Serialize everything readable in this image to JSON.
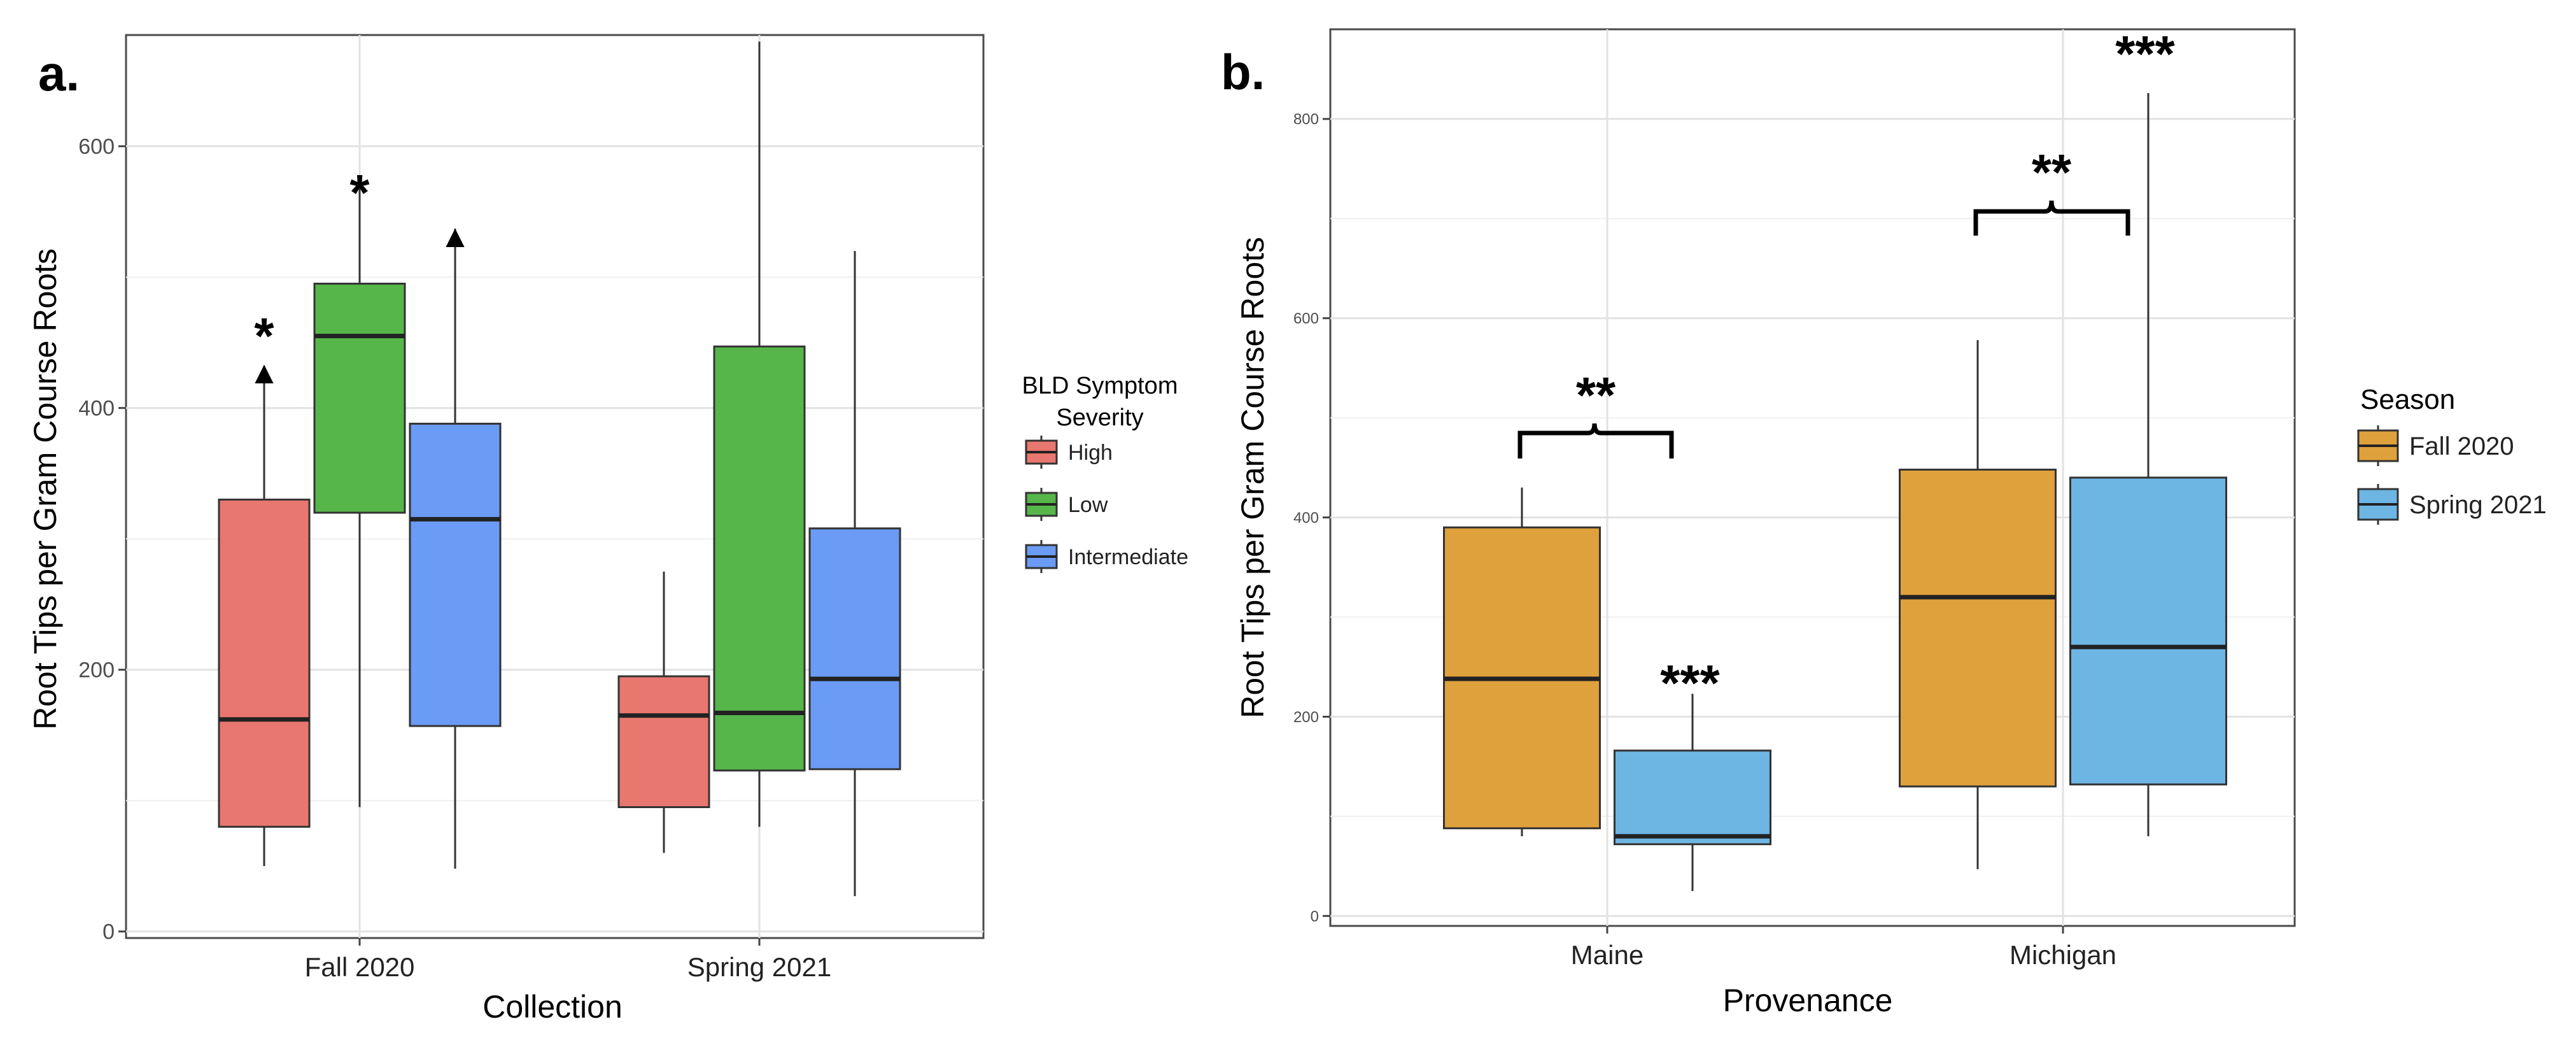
{
  "chart_data": [
    {
      "type": "boxplot",
      "panel_label": "a.",
      "title": "",
      "xlabel": "Collection",
      "ylabel": "Root Tips per Gram Course Roots",
      "categories": [
        "Fall 2020",
        "Spring 2021"
      ],
      "ylim": [
        -5,
        685
      ],
      "yticks": [
        0,
        200,
        400,
        600
      ],
      "grid": true,
      "legend": {
        "title_line1": "BLD Symptom",
        "title_line2": "Severity",
        "placement": "right",
        "entries": [
          "High",
          "Low",
          "Intermediate"
        ]
      },
      "series": [
        {
          "name": "High",
          "color": "#E8776F",
          "boxes": [
            {
              "category": "Fall 2020",
              "min": 50,
              "q1": 80,
              "median": 162,
              "q3": 330,
              "max": 432
            },
            {
              "category": "Spring 2021",
              "min": 60,
              "q1": 95,
              "median": 165,
              "q3": 195,
              "max": 275
            }
          ]
        },
        {
          "name": "Low",
          "color": "#56B64A",
          "boxes": [
            {
              "category": "Fall 2020",
              "min": 95,
              "q1": 320,
              "median": 455,
              "q3": 495,
              "max": 578
            },
            {
              "category": "Spring 2021",
              "min": 80,
              "q1": 123,
              "median": 167,
              "q3": 447,
              "max": 680
            }
          ]
        },
        {
          "name": "Intermediate",
          "color": "#6A9BF5",
          "boxes": [
            {
              "category": "Fall 2020",
              "min": 48,
              "q1": 157,
              "median": 315,
              "q3": 388,
              "max": 537
            },
            {
              "category": "Spring 2021",
              "min": 27,
              "q1": 124,
              "median": 193,
              "q3": 308,
              "max": 520
            }
          ]
        }
      ],
      "annotations": [
        {
          "category": "Fall 2020",
          "series": "High",
          "text": "*"
        },
        {
          "category": "Fall 2020",
          "series": "High",
          "text": "▲"
        },
        {
          "category": "Fall 2020",
          "series": "Low",
          "text": "*"
        },
        {
          "category": "Fall 2020",
          "series": "Intermediate",
          "text": "▲"
        }
      ]
    },
    {
      "type": "boxplot",
      "panel_label": "b.",
      "title": "",
      "xlabel": "Provenance",
      "ylabel": "Root Tips per Gram Course Roots",
      "categories": [
        "Maine",
        "Michigan"
      ],
      "ylim": [
        -10,
        890
      ],
      "yticks": [
        0,
        200,
        400,
        600,
        800
      ],
      "grid": true,
      "legend": {
        "title_line1": "Season",
        "placement": "right",
        "entries": [
          "Fall 2020",
          "Spring 2021"
        ]
      },
      "series": [
        {
          "name": "Fall 2020",
          "color": "#DFA13B",
          "boxes": [
            {
              "category": "Maine",
              "min": 80,
              "q1": 88,
              "median": 238,
              "q3": 390,
              "max": 430
            },
            {
              "category": "Michigan",
              "min": 47,
              "q1": 130,
              "median": 320,
              "q3": 448,
              "max": 578
            }
          ]
        },
        {
          "name": "Spring 2021",
          "color": "#6DB5E3",
          "boxes": [
            {
              "category": "Maine",
              "min": 25,
              "q1": 72,
              "median": 80,
              "q3": 166,
              "max": 223
            },
            {
              "category": "Michigan",
              "min": 80,
              "q1": 132,
              "median": 270,
              "q3": 440,
              "max": 826
            }
          ]
        }
      ],
      "annotations": [
        {
          "category": "Maine",
          "text": "**",
          "type": "bracket"
        },
        {
          "category": "Maine",
          "series": "Spring 2021",
          "text": "***"
        },
        {
          "category": "Michigan",
          "text": "**",
          "type": "bracket"
        },
        {
          "category": "Michigan",
          "series": "Spring 2021",
          "text": "***"
        }
      ]
    }
  ]
}
